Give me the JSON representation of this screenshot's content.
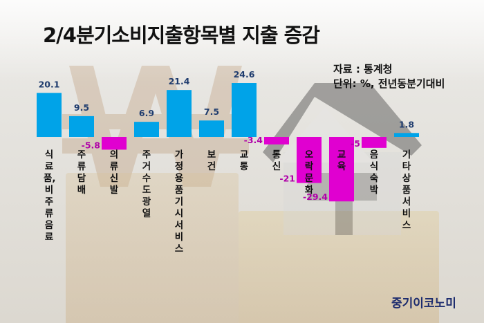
{
  "title": "2/4분기소비지출항목별 지출 증감",
  "source": {
    "line1": "자료 : 통계청",
    "line2": "단위: %, 전년동분기대비"
  },
  "brand": "중기이코노미",
  "colors": {
    "positive": "#00a3e8",
    "negative": "#e000d0",
    "negative_label": "#b000a8",
    "positive_label": "#1f3c6e"
  },
  "chart_data": {
    "type": "bar",
    "title": "2/4분기소비지출항목별 지출 증감",
    "categories": [
      "식료품, 비주류음료",
      "주류담배",
      "의류신발",
      "주거수도광열",
      "가정용품기시서비스",
      "보건",
      "교통",
      "통신",
      "오락문화",
      "교육",
      "음식숙박",
      "기타상품서비스"
    ],
    "values": [
      20.1,
      9.5,
      -5.8,
      6.9,
      21.4,
      7.5,
      24.6,
      -3.4,
      -21,
      -29.4,
      -5,
      1.8
    ],
    "value_labels": [
      "20.1",
      "9.5",
      "-5.8",
      "6.9",
      "21.4",
      "7.5",
      "24.6",
      "-3.4",
      "-21",
      "-29.4",
      "-5",
      "1.8"
    ],
    "ylim": [
      -29.4,
      24.6
    ],
    "grid": false,
    "legend": "none"
  }
}
